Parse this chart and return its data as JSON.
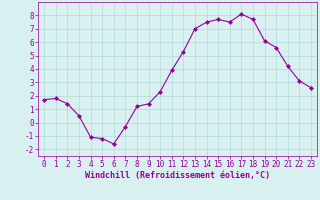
{
  "x": [
    0,
    1,
    2,
    3,
    4,
    5,
    6,
    7,
    8,
    9,
    10,
    11,
    12,
    13,
    14,
    15,
    16,
    17,
    18,
    19,
    20,
    21,
    22,
    23
  ],
  "y": [
    1.7,
    1.8,
    1.4,
    0.5,
    -1.1,
    -1.2,
    -1.6,
    -0.3,
    1.2,
    1.4,
    2.3,
    3.9,
    5.3,
    7.0,
    7.5,
    7.7,
    7.5,
    8.1,
    7.7,
    6.1,
    5.6,
    4.2,
    3.1,
    2.6
  ],
  "line_color": "#990099",
  "marker": "D",
  "marker_size": 2,
  "bg_color": "#d8f0f0",
  "grid_color": "#b0d8d8",
  "xlabel": "Windchill (Refroidissement éolien,°C)",
  "xlabel_color": "#990099",
  "tick_color": "#990099",
  "label_color": "#990099",
  "ylim": [
    -2.5,
    9.0
  ],
  "xlim": [
    -0.5,
    23.5
  ],
  "yticks": [
    -2,
    -1,
    0,
    1,
    2,
    3,
    4,
    5,
    6,
    7,
    8
  ],
  "xticks": [
    0,
    1,
    2,
    3,
    4,
    5,
    6,
    7,
    8,
    9,
    10,
    11,
    12,
    13,
    14,
    15,
    16,
    17,
    18,
    19,
    20,
    21,
    22,
    23
  ],
  "tick_fontsize": 5.5,
  "xlabel_fontsize": 6.0
}
